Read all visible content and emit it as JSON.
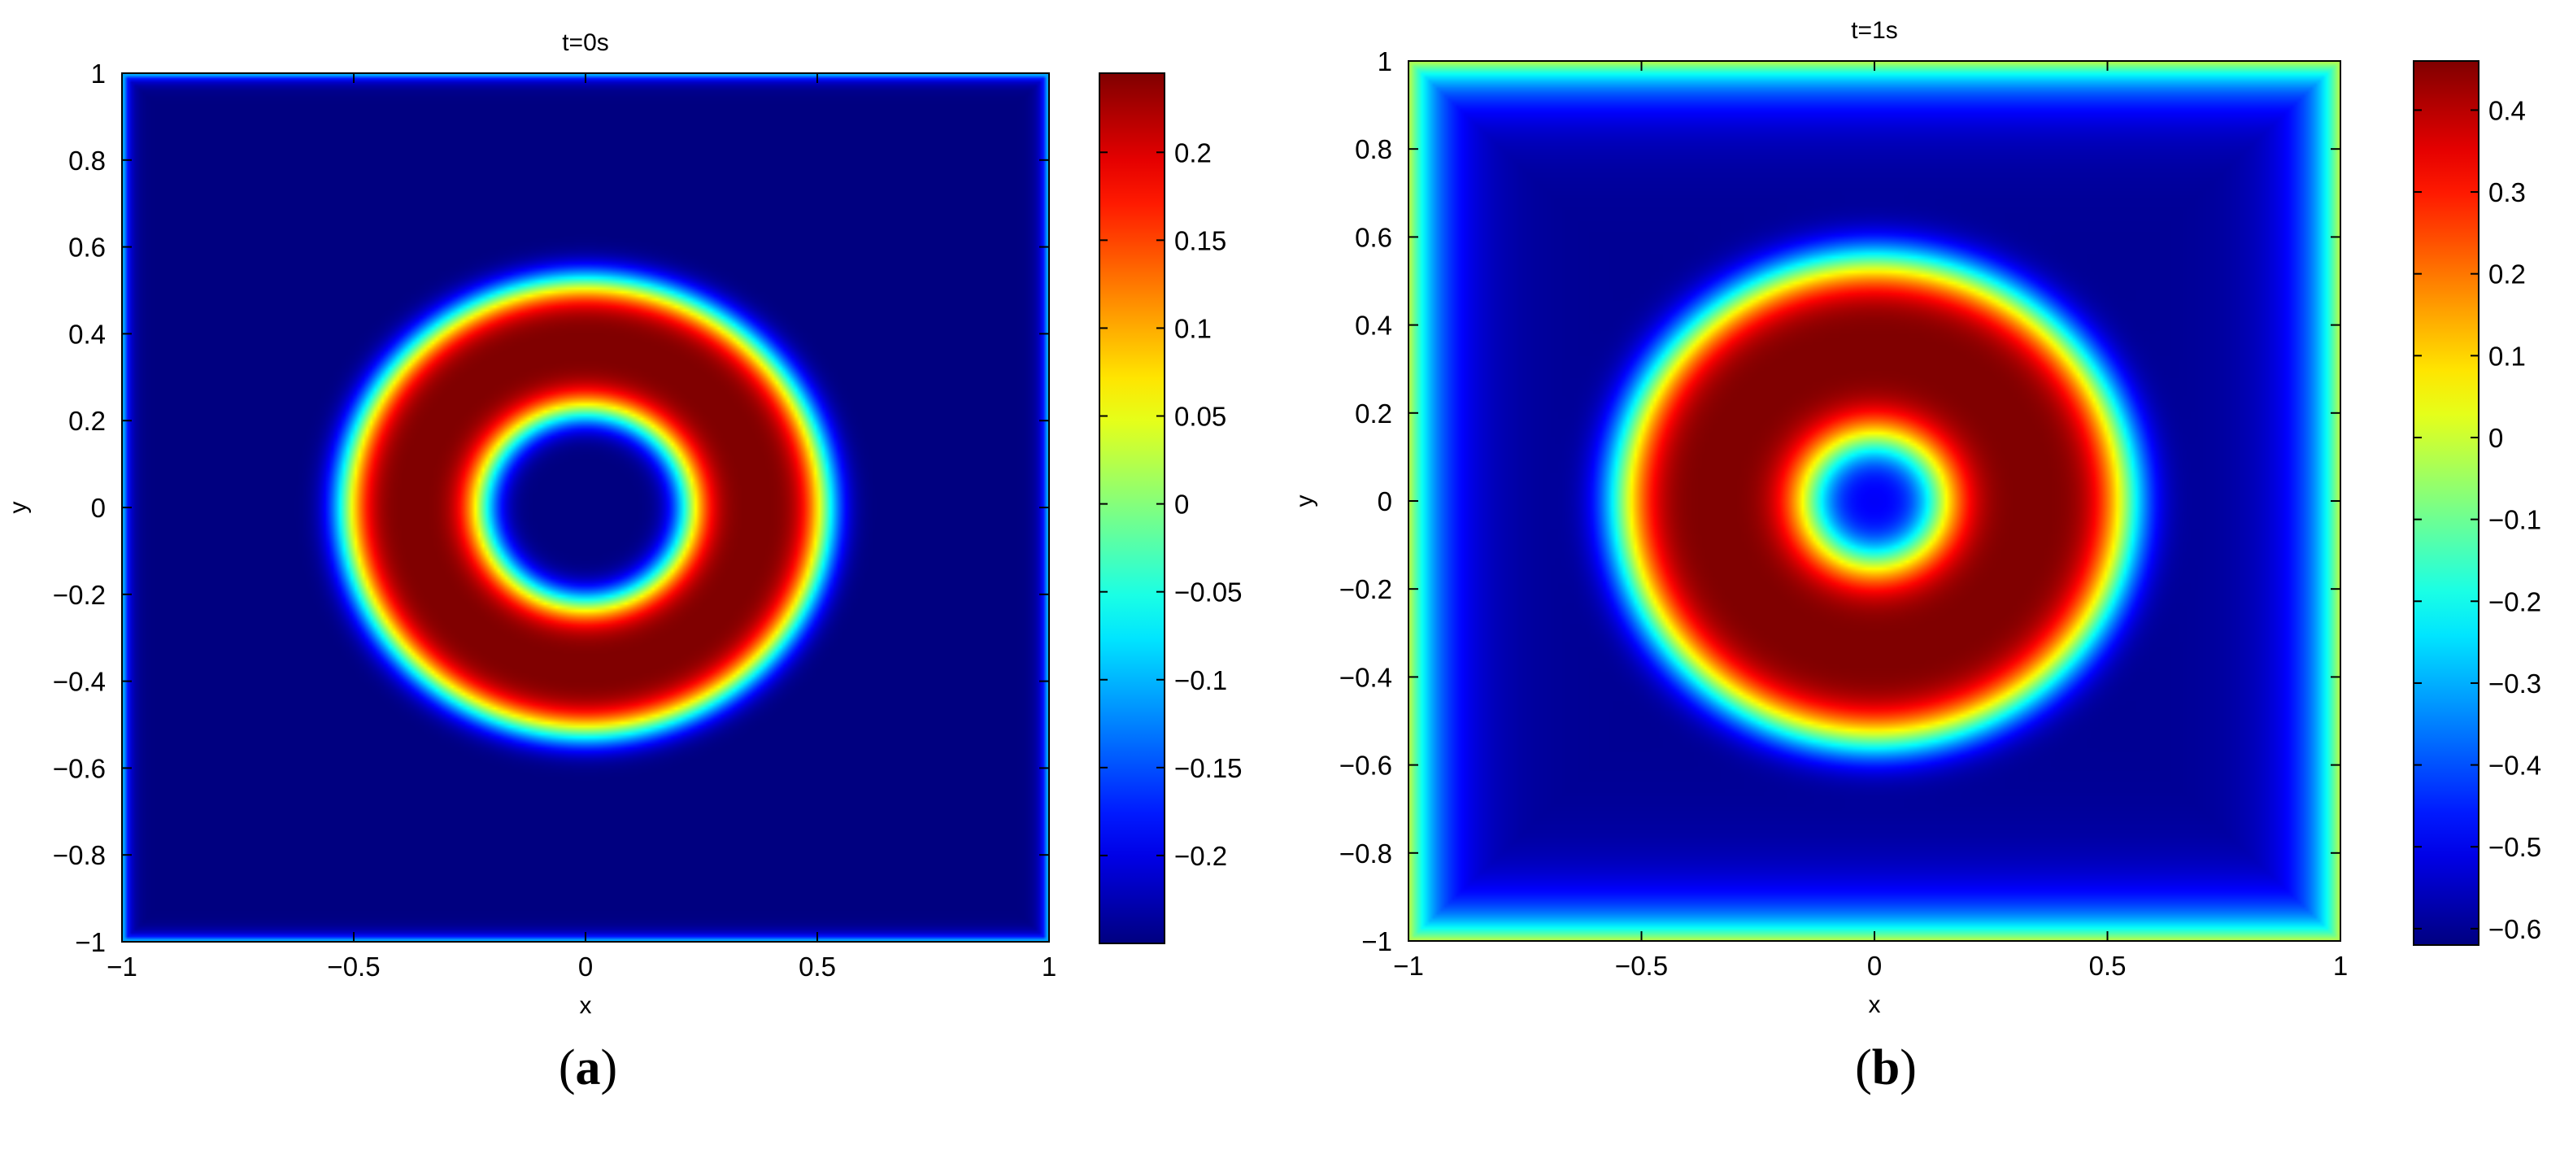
{
  "panels": [
    {
      "caption_letter": "a",
      "chart_data": {
        "type": "heatmap",
        "title": "t=0s",
        "xlabel": "x",
        "ylabel": "y",
        "xlim": [
          -1,
          1
        ],
        "ylim": [
          -1,
          1
        ],
        "x_ticks": [
          "−1",
          "−0.5",
          "0",
          "0.5",
          "1"
        ],
        "y_ticks": [
          "1",
          "0.8",
          "0.6",
          "0.4",
          "0.2",
          "0",
          "−0.2",
          "−0.4",
          "−0.6",
          "−0.8",
          "−1"
        ],
        "colormap": "jet",
        "colorbar": {
          "range": [
            -0.25,
            0.245
          ],
          "ticks": [
            "0.2",
            "0.15",
            "0.1",
            "0.05",
            "0",
            "−0.05",
            "−0.1",
            "−0.15",
            "−0.2"
          ]
        },
        "field": {
          "background": -0.25,
          "ring_peak": 0.245,
          "ring_center_radius": 0.37,
          "ring_half_width": 0.16,
          "boundary_value": -0.05
        }
      }
    },
    {
      "caption_letter": "b",
      "chart_data": {
        "type": "heatmap",
        "title": "t=1s",
        "xlabel": "x",
        "ylabel": "y",
        "xlim": [
          -1,
          1
        ],
        "ylim": [
          -1,
          1
        ],
        "x_ticks": [
          "−1",
          "−0.5",
          "0",
          "0.5",
          "1"
        ],
        "y_ticks": [
          "1",
          "0.8",
          "0.6",
          "0.4",
          "0.2",
          "0",
          "−0.2",
          "−0.4",
          "−0.6",
          "−0.8",
          "−1"
        ],
        "colormap": "jet",
        "colorbar": {
          "range": [
            -0.62,
            0.46
          ],
          "ticks": [
            "0.4",
            "0.3",
            "0.2",
            "0.1",
            "0",
            "−0.1",
            "−0.2",
            "−0.3",
            "−0.4",
            "−0.5",
            "−0.6"
          ]
        },
        "field": {
          "background": -0.6,
          "ring_peak": 0.46,
          "ring_center_radius": 0.34,
          "ring_half_width": 0.22,
          "center_value": -0.45,
          "boundary_value": 0.0
        }
      }
    }
  ]
}
